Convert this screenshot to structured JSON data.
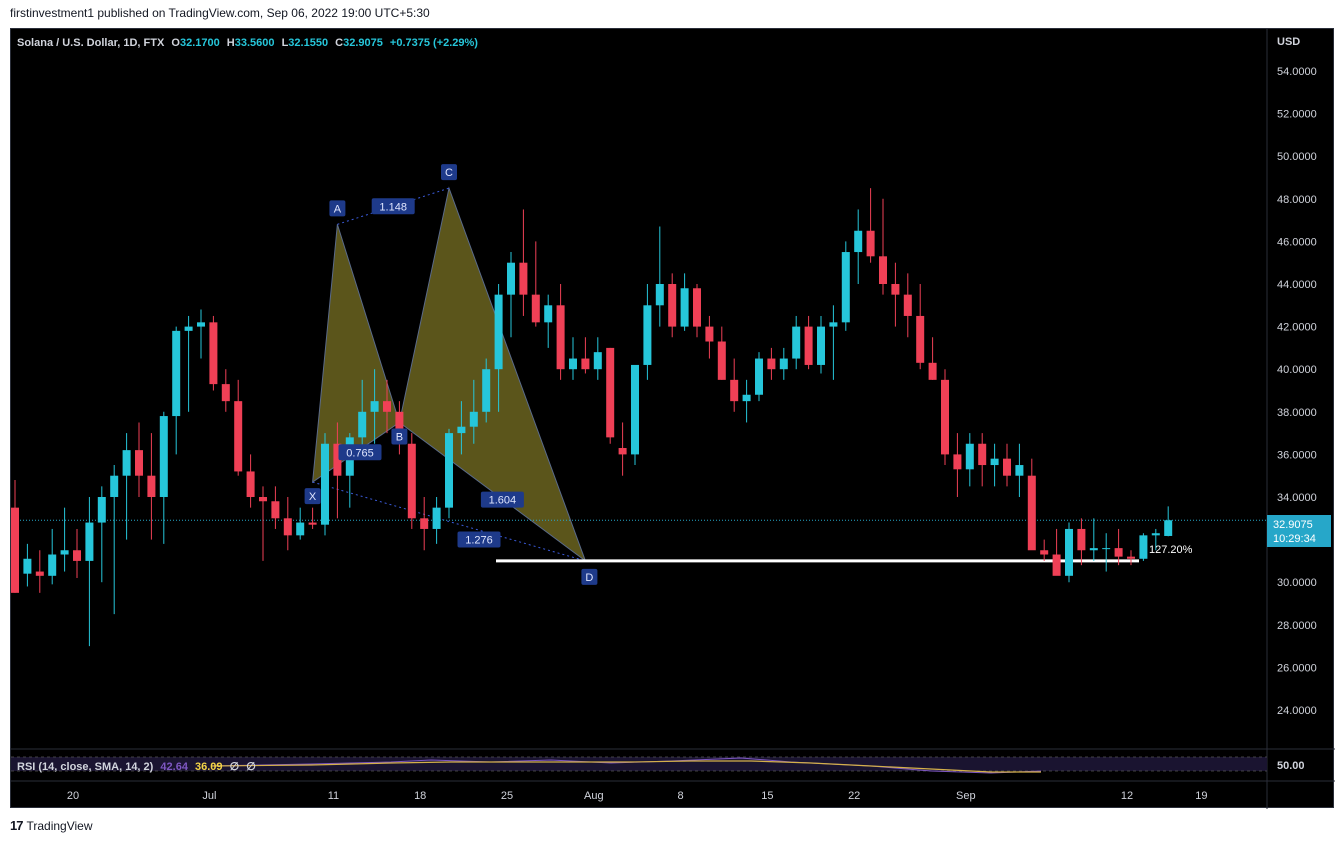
{
  "header": {
    "attribution": "firstinvestment1 published on TradingView.com, Sep 06, 2022 19:00 UTC+5:30"
  },
  "legend": {
    "symbol": "Solana / U.S. Dollar, 1D, FTX",
    "o_label": "O",
    "o_value": "32.1700",
    "h_label": "H",
    "h_value": "33.5600",
    "l_label": "L",
    "l_value": "32.1550",
    "c_label": "C",
    "c_value": "32.9075",
    "change": "+0.7375 (+2.29%)"
  },
  "price_axis": {
    "currency": "USD",
    "ticks": [
      "54.0000",
      "52.0000",
      "50.0000",
      "48.0000",
      "46.0000",
      "44.0000",
      "42.0000",
      "40.0000",
      "38.0000",
      "36.0000",
      "34.0000",
      "32.0000",
      "30.0000",
      "28.0000",
      "26.0000",
      "24.0000"
    ],
    "last_price": "32.9075",
    "countdown": "10:29:34"
  },
  "time_axis": {
    "labels": [
      "20",
      "Jul",
      "11",
      "18",
      "25",
      "Aug",
      "8",
      "15",
      "22",
      "Sep",
      "12",
      "19"
    ]
  },
  "rsi_pane": {
    "label": "RSI (14, close, SMA, 14, 2)",
    "rsi_value": "42.64",
    "sma_value": "36.09",
    "extra1": "∅",
    "extra2": "∅",
    "axis_label": "50.00"
  },
  "pattern": {
    "points": [
      "X",
      "A",
      "B",
      "C",
      "D"
    ],
    "ratios": [
      "0.765",
      "1.148",
      "1.604",
      "1.276"
    ],
    "level_label": "127.20%"
  },
  "footer": {
    "brand": "TradingView"
  },
  "colors": {
    "up": "#26c6da",
    "down": "#ef4056",
    "pattern_fill": "#6b6420",
    "label_bg": "#1e3a8a"
  },
  "chart_data": {
    "type": "candlestick",
    "ylim": [
      22.5,
      56
    ],
    "ohlc": [
      [
        33.5,
        34.8,
        29.5,
        29.5
      ],
      [
        30.4,
        31.8,
        29.8,
        31.1
      ],
      [
        30.5,
        31.5,
        29.5,
        30.3
      ],
      [
        30.3,
        32.5,
        29.9,
        31.3
      ],
      [
        31.3,
        33.5,
        30.5,
        31.5
      ],
      [
        31.5,
        32.5,
        30.2,
        31.0
      ],
      [
        31.0,
        34.0,
        27.0,
        32.8
      ],
      [
        32.8,
        34.5,
        30.0,
        34.0
      ],
      [
        34.0,
        35.5,
        28.5,
        35.0
      ],
      [
        35.0,
        37.0,
        32.0,
        36.2
      ],
      [
        36.2,
        37.5,
        34.0,
        35.0
      ],
      [
        35.0,
        37.0,
        32.0,
        34.0
      ],
      [
        34.0,
        38.0,
        31.8,
        37.8
      ],
      [
        37.8,
        42.0,
        36.0,
        41.8
      ],
      [
        41.8,
        42.5,
        38.0,
        42.0
      ],
      [
        42.0,
        42.8,
        40.5,
        42.2
      ],
      [
        42.2,
        42.5,
        39.0,
        39.3
      ],
      [
        39.3,
        40.0,
        38.0,
        38.5
      ],
      [
        38.5,
        39.5,
        35.0,
        35.2
      ],
      [
        35.2,
        36.0,
        33.5,
        34.0
      ],
      [
        34.0,
        34.5,
        31.0,
        33.8
      ],
      [
        33.8,
        34.5,
        32.5,
        33.0
      ],
      [
        33.0,
        34.0,
        31.5,
        32.2
      ],
      [
        32.2,
        33.5,
        32.0,
        32.8
      ],
      [
        32.8,
        33.5,
        32.5,
        32.7
      ],
      [
        32.7,
        37.0,
        32.2,
        36.5
      ],
      [
        36.5,
        37.5,
        33.0,
        35.0
      ],
      [
        35.0,
        37.0,
        33.5,
        36.8
      ],
      [
        36.8,
        39.5,
        36.0,
        38.0
      ],
      [
        38.0,
        40.0,
        36.5,
        38.5
      ],
      [
        38.5,
        39.5,
        37.0,
        38.0
      ],
      [
        38.0,
        38.5,
        36.0,
        36.5
      ],
      [
        36.5,
        37.0,
        32.5,
        33.0
      ],
      [
        33.0,
        34.0,
        31.5,
        32.5
      ],
      [
        32.5,
        34.0,
        31.8,
        33.5
      ],
      [
        33.5,
        37.2,
        33.0,
        37.0
      ],
      [
        37.0,
        38.5,
        36.0,
        37.3
      ],
      [
        37.3,
        39.5,
        36.5,
        38.0
      ],
      [
        38.0,
        40.5,
        37.5,
        40.0
      ],
      [
        40.0,
        44.0,
        38.0,
        43.5
      ],
      [
        43.5,
        45.5,
        41.5,
        45.0
      ],
      [
        45.0,
        47.5,
        42.5,
        43.5
      ],
      [
        43.5,
        46.0,
        42.0,
        42.2
      ],
      [
        42.2,
        43.5,
        41.0,
        43.0
      ],
      [
        43.0,
        44.0,
        39.5,
        40.0
      ],
      [
        40.0,
        41.5,
        39.5,
        40.5
      ],
      [
        40.5,
        41.5,
        39.8,
        40.0
      ],
      [
        40.0,
        41.5,
        39.5,
        40.8
      ],
      [
        41.0,
        41.0,
        36.5,
        36.8
      ],
      [
        36.3,
        37.5,
        35.0,
        36.0
      ],
      [
        36.0,
        40.0,
        35.5,
        40.2
      ],
      [
        40.2,
        44.0,
        39.5,
        43.0
      ],
      [
        43.0,
        46.7,
        42.0,
        44.0
      ],
      [
        44.0,
        44.5,
        41.5,
        42.0
      ],
      [
        42.0,
        44.5,
        41.8,
        43.8
      ],
      [
        43.8,
        44.0,
        41.5,
        42.0
      ],
      [
        42.0,
        42.5,
        40.5,
        41.3
      ],
      [
        41.3,
        42.0,
        39.5,
        39.5
      ],
      [
        39.5,
        40.5,
        38.0,
        38.5
      ],
      [
        38.5,
        39.5,
        37.5,
        38.8
      ],
      [
        38.8,
        40.8,
        38.5,
        40.5
      ],
      [
        40.5,
        41.0,
        39.5,
        40.0
      ],
      [
        40.0,
        41.0,
        39.5,
        40.5
      ],
      [
        40.5,
        42.5,
        40.0,
        42.0
      ],
      [
        42.0,
        42.5,
        40.0,
        40.2
      ],
      [
        40.2,
        42.5,
        39.8,
        42.0
      ],
      [
        42.0,
        43.0,
        39.5,
        42.2
      ],
      [
        42.2,
        46.0,
        41.8,
        45.5
      ],
      [
        45.5,
        47.5,
        44.0,
        46.5
      ],
      [
        46.5,
        48.5,
        45.0,
        45.3
      ],
      [
        45.3,
        48.0,
        43.5,
        44.0
      ],
      [
        44.0,
        45.0,
        42.0,
        43.5
      ],
      [
        43.5,
        44.5,
        41.5,
        42.5
      ],
      [
        42.5,
        44.0,
        40.0,
        40.3
      ],
      [
        40.3,
        41.5,
        39.5,
        39.5
      ],
      [
        39.5,
        40.0,
        35.5,
        36.0
      ],
      [
        36.0,
        37.0,
        34.0,
        35.3
      ],
      [
        35.3,
        37.0,
        34.5,
        36.5
      ],
      [
        36.5,
        37.0,
        34.5,
        35.5
      ],
      [
        35.5,
        36.5,
        34.5,
        35.8
      ],
      [
        35.8,
        36.5,
        34.5,
        35.0
      ],
      [
        35.0,
        36.5,
        34.0,
        35.5
      ],
      [
        35.0,
        35.8,
        31.8,
        31.5
      ],
      [
        31.5,
        32.0,
        31.0,
        31.3
      ],
      [
        31.3,
        32.5,
        30.5,
        30.3
      ],
      [
        30.3,
        32.8,
        30.0,
        32.5
      ],
      [
        32.5,
        33.0,
        30.8,
        31.5
      ],
      [
        31.5,
        33.0,
        31.0,
        31.6
      ],
      [
        31.6,
        32.3,
        30.5,
        31.6
      ],
      [
        31.6,
        32.5,
        30.8,
        31.2
      ],
      [
        31.2,
        31.5,
        30.8,
        31.1
      ],
      [
        31.1,
        32.3,
        31.0,
        32.2
      ],
      [
        32.2,
        32.5,
        31.5,
        32.3
      ],
      [
        32.17,
        33.56,
        32.155,
        32.9075
      ]
    ],
    "pattern_points": {
      "X": [
        24,
        34.7
      ],
      "A": [
        26,
        46.8
      ],
      "B": [
        31,
        37.5
      ],
      "C": [
        35,
        48.5
      ],
      "D": [
        46,
        31.0
      ]
    },
    "level_127": 31.0
  }
}
